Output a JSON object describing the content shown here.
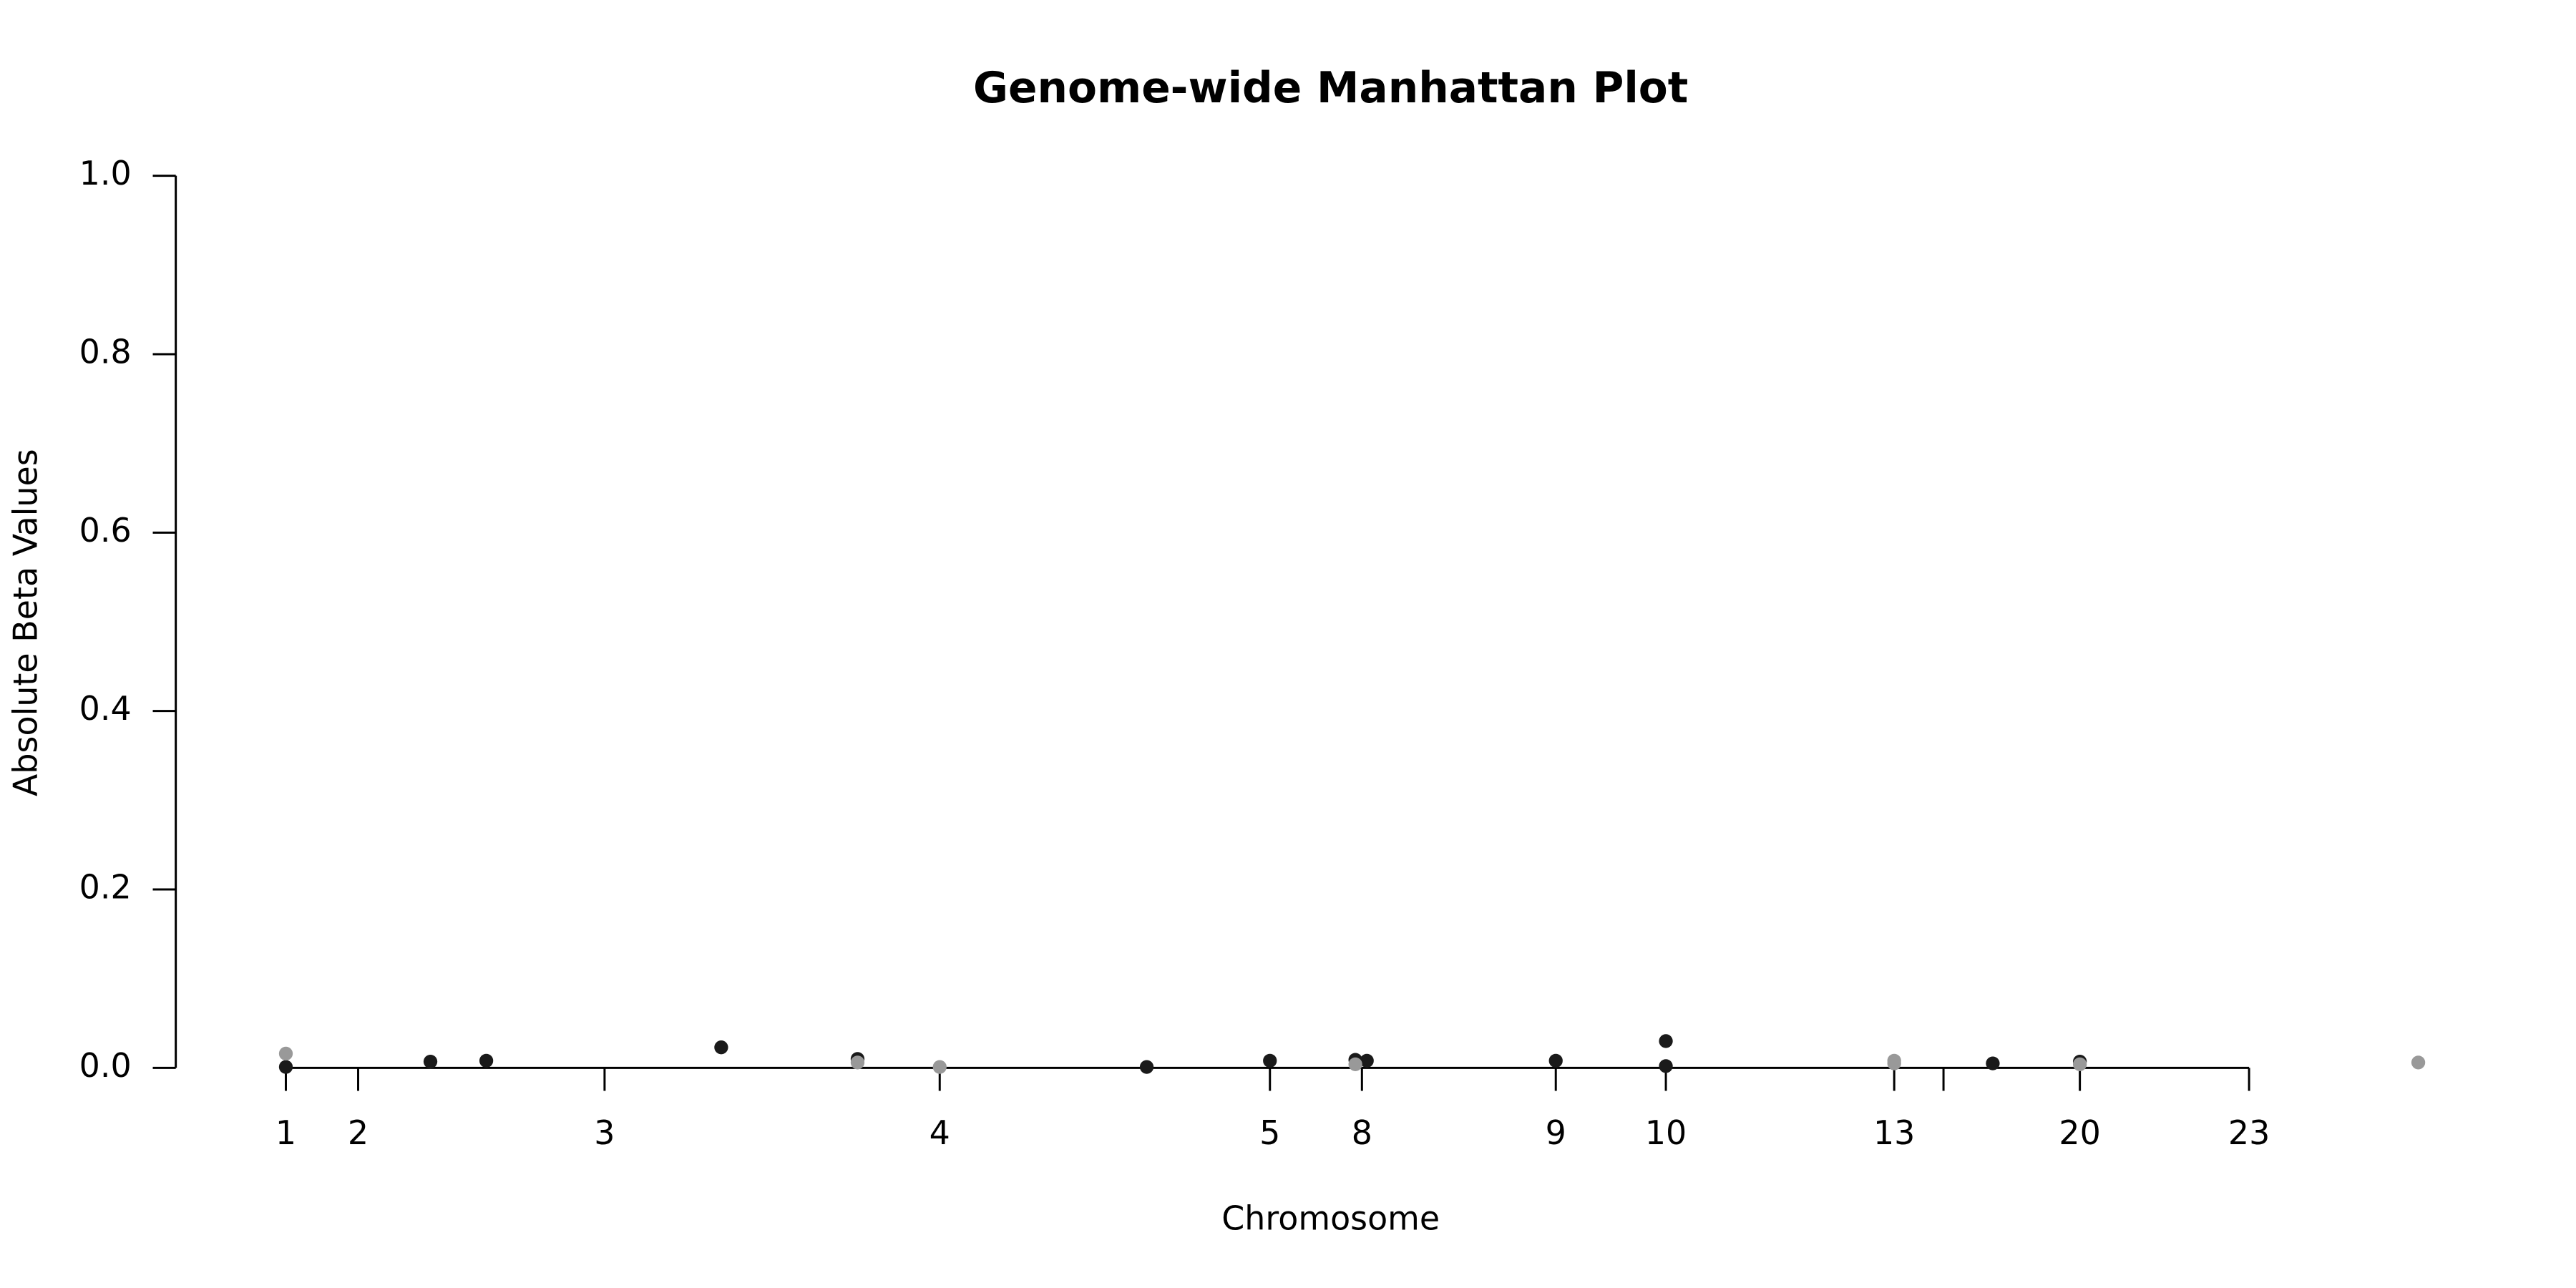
{
  "chart_data": {
    "type": "scatter",
    "title": "Genome-wide Manhattan Plot",
    "x_label": "Chromosome",
    "y_label": "Absolute Beta Values",
    "xlim": [
      -67,
      1350
    ],
    "ylim": [
      0,
      1
    ],
    "xticks": [
      {
        "value": 0,
        "label": "1"
      },
      {
        "value": 44,
        "label": "2"
      },
      {
        "value": 194,
        "label": "3"
      },
      {
        "value": 398,
        "label": "4"
      },
      {
        "value": 599,
        "label": "5"
      },
      {
        "value": 655,
        "label": "8"
      },
      {
        "value": 773,
        "label": "9"
      },
      {
        "value": 840,
        "label": "10"
      },
      {
        "value": 979,
        "label": "13"
      },
      {
        "value": 1009,
        "label": null
      },
      {
        "value": 1092,
        "label": "20"
      },
      {
        "value": 1195,
        "label": "23"
      }
    ],
    "yticks": [
      {
        "value": 0,
        "label": "0.0"
      },
      {
        "value": 0.2,
        "label": "0.2"
      },
      {
        "value": 0.4,
        "label": "0.4"
      },
      {
        "value": 0.6,
        "label": "0.6"
      },
      {
        "value": 0.8,
        "label": "0.8"
      },
      {
        "value": 1,
        "label": "1.0"
      }
    ],
    "series": [
      {
        "color": "#1a1a1a",
        "x": [
          0,
          88,
          122,
          265,
          348,
          524,
          599,
          651,
          658,
          773,
          840,
          840,
          1039,
          1092
        ],
        "values": [
          0.001,
          0.007,
          0.008,
          0.023,
          0.01,
          0.001,
          0.008,
          0.009,
          0.008,
          0.008,
          0.03,
          0.002,
          0.005,
          0.007
        ]
      },
      {
        "color": "#999999",
        "x": [
          0,
          348,
          398,
          651,
          979,
          979,
          1092,
          1298
        ],
        "values": [
          0.016,
          0.006,
          0.001,
          0.004,
          0.008,
          0.005,
          0.004,
          0.006
        ]
      }
    ]
  }
}
